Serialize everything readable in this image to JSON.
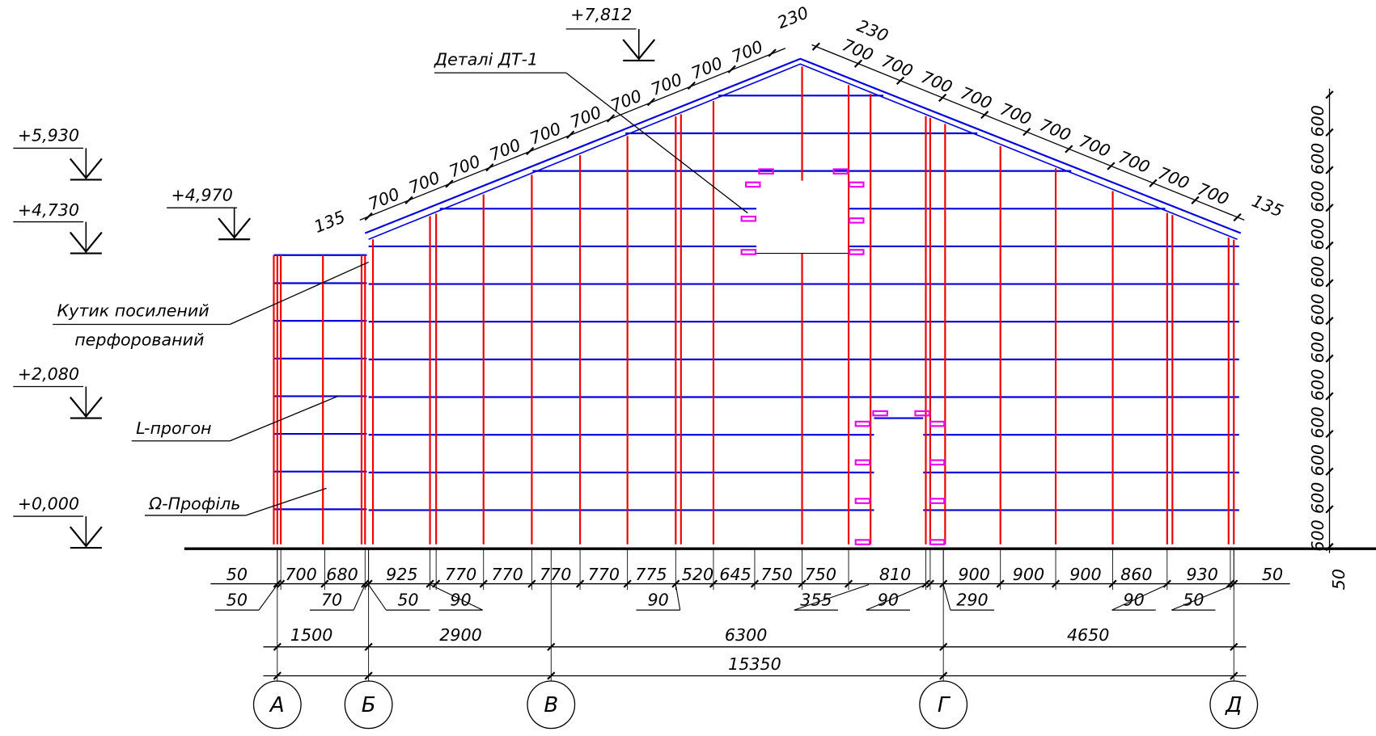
{
  "levels": [
    "+7,812",
    "+5,930",
    "+4,970",
    "+4,730",
    "+2,080",
    "+0,000"
  ],
  "labels": {
    "details": "Деталі ДТ-1",
    "corner_1": "Кутик посилений",
    "corner_2": "перфорований",
    "purlin": "L-прогон",
    "profile": "Ω-Профіль"
  },
  "roof_left": [
    "135",
    "700",
    "700",
    "700",
    "700",
    "700",
    "700",
    "700",
    "700",
    "700",
    "700",
    "230"
  ],
  "roof_right": [
    "230",
    "700",
    "700",
    "700",
    "700",
    "700",
    "700",
    "700",
    "700",
    "700",
    "700",
    "135"
  ],
  "height_dims": [
    "600",
    "600",
    "600",
    "600",
    "600",
    "600",
    "600",
    "600",
    "600",
    "600",
    "600",
    "600",
    "50"
  ],
  "bottom_dims": [
    "50",
    "700",
    "680",
    "925",
    "770",
    "770",
    "770",
    "770",
    "775",
    "520",
    "645",
    "750",
    "750",
    "810",
    "900",
    "900",
    "900",
    "860",
    "930",
    "50"
  ],
  "bottom_sub_dims": [
    "50",
    "70",
    "50",
    "90",
    "90",
    "355",
    "90",
    "290",
    "90",
    "50"
  ],
  "axis_dims": [
    "1500",
    "2900",
    "6300",
    "4650"
  ],
  "total_dim": "15350",
  "axes": [
    "А",
    "Б",
    "В",
    "Г",
    "Д"
  ]
}
